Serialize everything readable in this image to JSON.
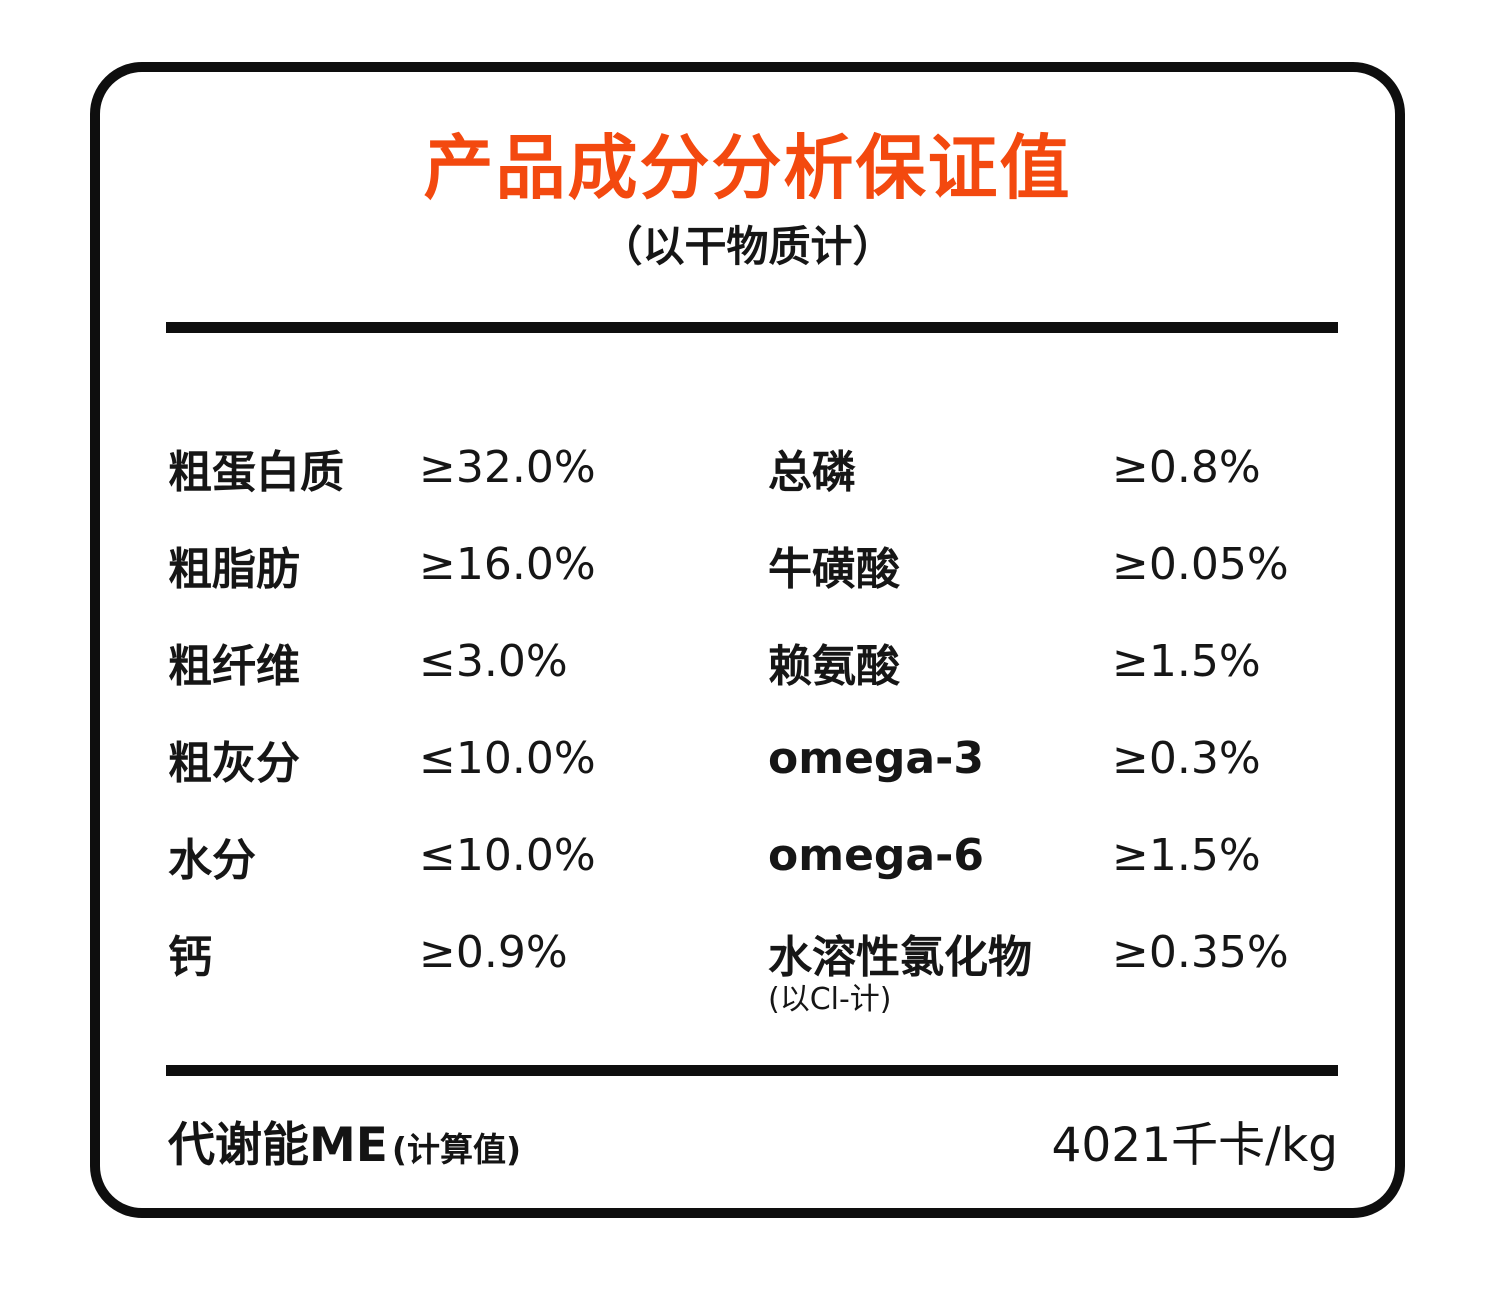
{
  "card": {
    "title": "产品成分分析保证值",
    "subtitle": "（以干物质计）",
    "title_color": "#f3490f",
    "border_color": "#0e0e0e",
    "rows": [
      {
        "left_label": "粗蛋白质",
        "left_value": "≥32.0%",
        "right_label": "总磷",
        "right_value": "≥0.8%"
      },
      {
        "left_label": "粗脂肪",
        "left_value": "≥16.0%",
        "right_label": "牛磺酸",
        "right_value": "≥0.05%"
      },
      {
        "left_label": "粗纤维",
        "left_value": "≤3.0%",
        "right_label": "赖氨酸",
        "right_value": "≥1.5%"
      },
      {
        "left_label": "粗灰分",
        "left_value": "≤10.0%",
        "right_label": "omega-3",
        "right_value": "≥0.3%"
      },
      {
        "left_label": "水分",
        "left_value": "≤10.0%",
        "right_label": "omega-6",
        "right_value": "≥1.5%"
      },
      {
        "left_label": "钙",
        "left_value": "≥0.9%",
        "right_label": "水溶性氯化物",
        "right_sub": "(以Cl-计)",
        "right_value": "≥0.35%"
      }
    ],
    "footer": {
      "label": "代谢能ME",
      "note": "(计算值)",
      "value": "4021千卡/kg"
    }
  }
}
